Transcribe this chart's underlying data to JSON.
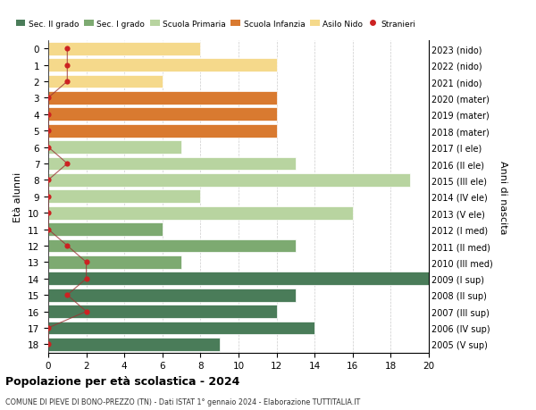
{
  "ages": [
    18,
    17,
    16,
    15,
    14,
    13,
    12,
    11,
    10,
    9,
    8,
    7,
    6,
    5,
    4,
    3,
    2,
    1,
    0
  ],
  "right_labels": [
    "2005 (V sup)",
    "2006 (IV sup)",
    "2007 (III sup)",
    "2008 (II sup)",
    "2009 (I sup)",
    "2010 (III med)",
    "2011 (II med)",
    "2012 (I med)",
    "2013 (V ele)",
    "2014 (IV ele)",
    "2015 (III ele)",
    "2016 (II ele)",
    "2017 (I ele)",
    "2018 (mater)",
    "2019 (mater)",
    "2020 (mater)",
    "2021 (nido)",
    "2022 (nido)",
    "2023 (nido)"
  ],
  "bar_values": [
    9,
    14,
    12,
    13,
    20,
    7,
    13,
    6,
    16,
    8,
    19,
    13,
    7,
    12,
    12,
    12,
    6,
    12,
    8
  ],
  "stranieri": [
    0,
    0,
    2,
    1,
    2,
    2,
    1,
    0,
    0,
    0,
    0,
    1,
    0,
    0,
    0,
    0,
    1,
    1,
    1
  ],
  "bar_colors": [
    "#4a7c59",
    "#4a7c59",
    "#4a7c59",
    "#4a7c59",
    "#4a7c59",
    "#7daa71",
    "#7daa71",
    "#7daa71",
    "#b8d4a0",
    "#b8d4a0",
    "#b8d4a0",
    "#b8d4a0",
    "#b8d4a0",
    "#d97a30",
    "#d97a30",
    "#d97a30",
    "#f5d98b",
    "#f5d98b",
    "#f5d98b"
  ],
  "legend_labels": [
    "Sec. II grado",
    "Sec. I grado",
    "Scuola Primaria",
    "Scuola Infanzia",
    "Asilo Nido",
    "Stranieri"
  ],
  "legend_colors": [
    "#4a7c59",
    "#7daa71",
    "#b8d4a0",
    "#d97a30",
    "#f5d98b",
    "#cc2222"
  ],
  "title": "Popolazione per età scolastica - 2024",
  "subtitle": "COMUNE DI PIEVE DI BONO-PREZZO (TN) - Dati ISTAT 1° gennaio 2024 - Elaborazione TUTTITALIA.IT",
  "ylabel": "Età alunni",
  "ylabel2": "Anni di nascita",
  "xlim": [
    0,
    20
  ],
  "xticks": [
    0,
    2,
    4,
    6,
    8,
    10,
    12,
    14,
    16,
    18,
    20
  ],
  "stranieri_color": "#cc2222",
  "stranieri_line_color": "#993333",
  "background_color": "#ffffff",
  "grid_color": "#cccccc"
}
